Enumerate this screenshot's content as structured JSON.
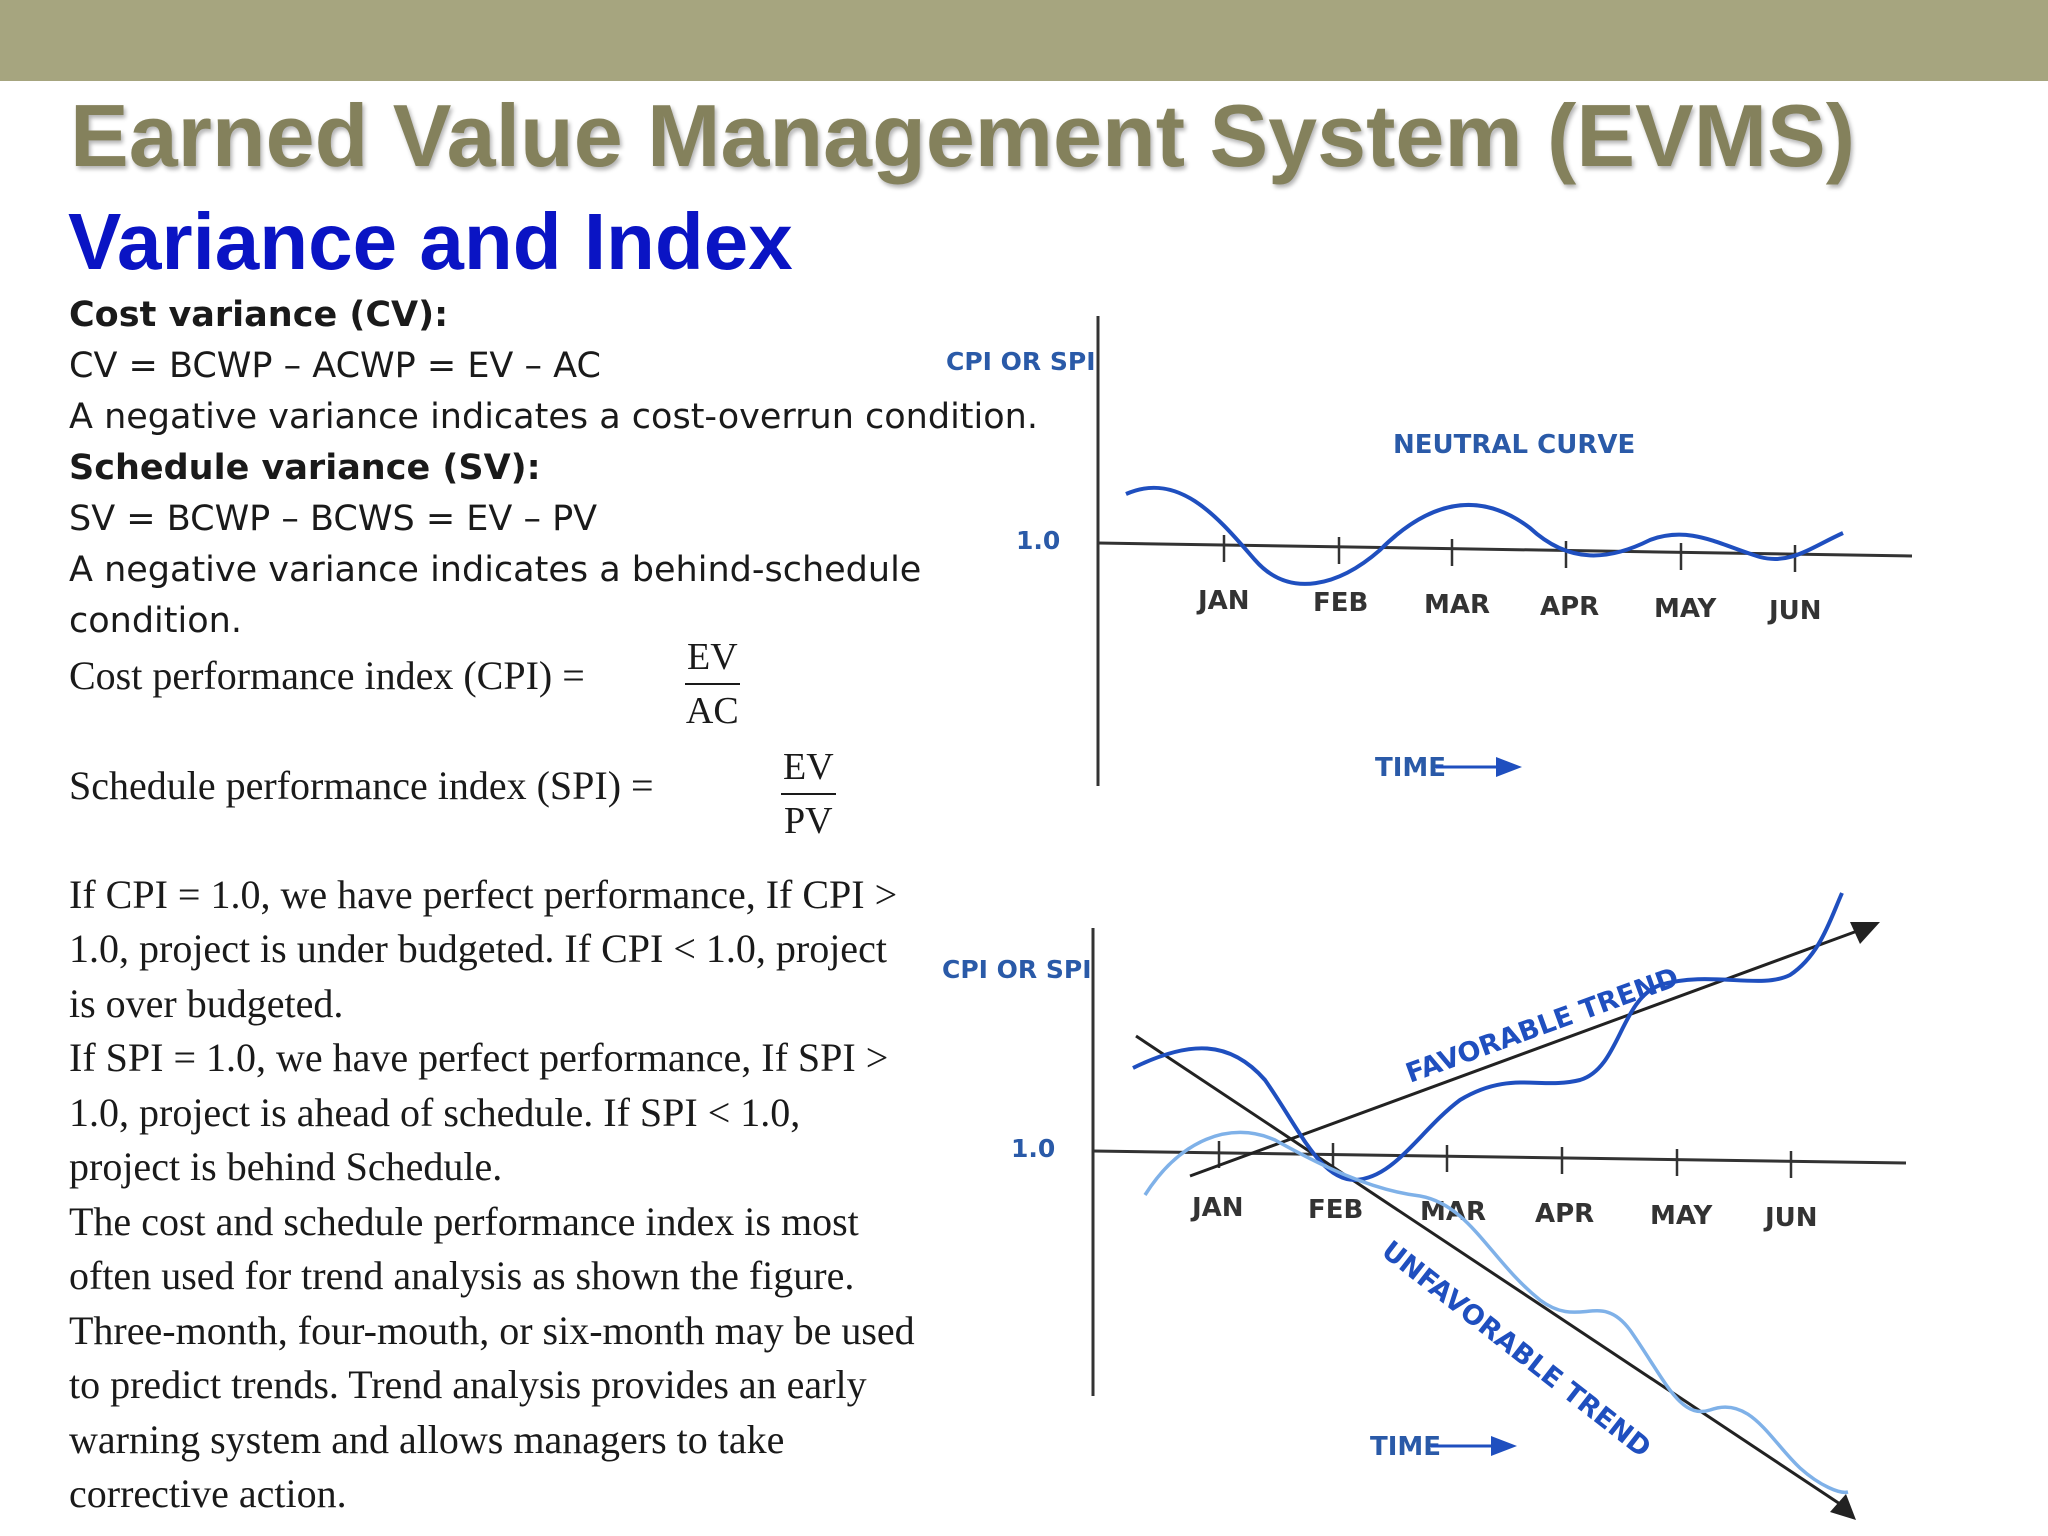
{
  "slide": {
    "title": "Earned Value Management System (EVMS)",
    "subtitle": "Variance and Index",
    "colors": {
      "topbar": "#a6a57f",
      "title": "#84815c",
      "subtitle": "#0a14c4",
      "curve": "#1f4fbf",
      "light_curve": "#7fb1e8",
      "label": "#2a5aa8"
    }
  },
  "text": {
    "cv_heading": "Cost variance (CV):",
    "cv_formula": "CV = BCWP – ACWP = EV – AC",
    "cv_note": "A negative variance indicates a cost-overrun condition.",
    "sv_heading": "Schedule variance (SV):",
    "sv_formula": "SV = BCWP – BCWS = EV – PV",
    "sv_note_1": "A negative variance indicates a behind-schedule",
    "sv_note_2": "condition.",
    "cpi_label": "Cost performance index (CPI) =",
    "cpi_num": "EV",
    "cpi_den": "AC",
    "spi_label": "Schedule performance index (SPI) =",
    "spi_num": "EV",
    "spi_den": "PV",
    "para": [
      "If CPI = 1.0, we have perfect performance, If CPI >",
      "1.0, project is under budgeted. If CPI < 1.0, project",
      "is over budgeted.",
      "If  SPI = 1.0, we have perfect performance, If SPI >",
      "1.0, project is ahead of schedule. If SPI < 1.0,",
      "project is behind Schedule.",
      "The cost and schedule performance index is most",
      "often used for trend analysis as shown the figure.",
      "Three-month, four-mouth, or six-month may be used",
      "to predict trends. Trend analysis provides an early",
      "warning system and allows managers to take",
      "corrective action."
    ]
  },
  "figure_top": {
    "y_label": "CPI OR SPI",
    "ref_value": "1.0",
    "months": [
      "JAN",
      "FEB",
      "MAR",
      "APR",
      "MAY",
      "JUN"
    ],
    "curve_label": "NEUTRAL CURVE",
    "time_label": "TIME"
  },
  "figure_bottom": {
    "y_label": "CPI OR SPI",
    "ref_value": "1.0",
    "months": [
      "JAN",
      "FEB",
      "MAR",
      "APR",
      "MAY",
      "JUN"
    ],
    "favorable_label": "FAVORABLE TREND",
    "unfavorable_label": "UNFAVORABLE TREND",
    "time_label": "TIME"
  }
}
